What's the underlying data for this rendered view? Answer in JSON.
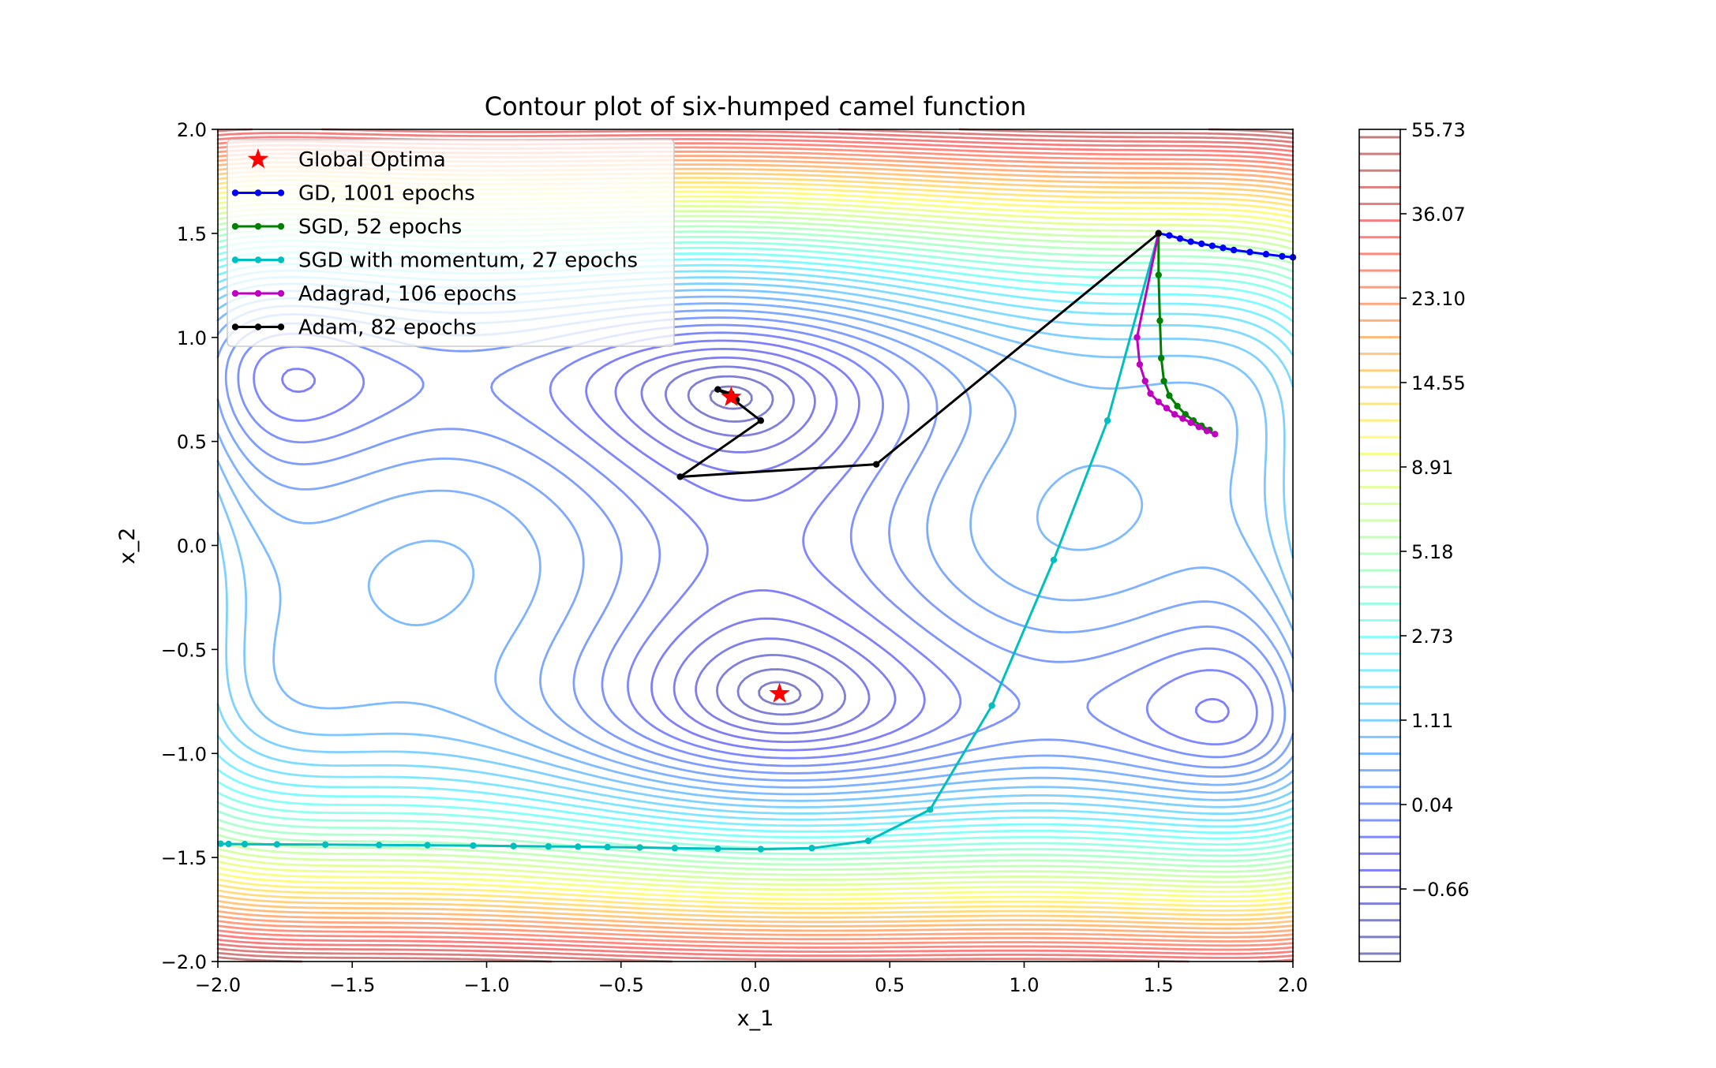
{
  "chart_data": {
    "type": "contour",
    "title": "Contour plot of six-humped camel function",
    "xlabel": "x_1",
    "ylabel": "x_2",
    "xlim": [
      -2.0,
      2.0
    ],
    "ylim": [
      -2.0,
      2.0
    ],
    "xticks": [
      -2.0,
      -1.5,
      -1.0,
      -0.5,
      0.0,
      0.5,
      1.0,
      1.5,
      2.0
    ],
    "yticks": [
      -2.0,
      -1.5,
      -1.0,
      -0.5,
      0.0,
      0.5,
      1.0,
      1.5,
      2.0
    ],
    "xtick_labels": [
      "−2.0",
      "−1.5",
      "−1.0",
      "−0.5",
      "0.0",
      "0.5",
      "1.0",
      "1.5",
      "2.0"
    ],
    "ytick_labels": [
      "−2.0",
      "−1.5",
      "−1.0",
      "−0.5",
      "0.0",
      "0.5",
      "1.0",
      "1.5",
      "2.0"
    ],
    "colormap": "jet",
    "contour_alpha": 0.5,
    "colorbar": {
      "tick_values": [
        55.73,
        36.07,
        23.1,
        14.55,
        8.91,
        5.18,
        2.73,
        1.11,
        0.04,
        -0.66
      ],
      "tick_labels": [
        "55.73",
        "36.07",
        "23.10",
        "14.55",
        "8.91",
        "5.18",
        "2.73",
        "1.11",
        "0.04",
        "−0.66"
      ],
      "min": -1.0316,
      "max": 55.73
    },
    "global_optima": [
      [
        0.0898,
        -0.7126
      ],
      [
        -0.0898,
        0.7126
      ]
    ],
    "legend": {
      "placement": "upper-left",
      "entries": [
        {
          "label": "Global Optima",
          "color": "#ff0000",
          "marker": "star"
        },
        {
          "label": "GD, 1001 epochs",
          "color": "#0000ff",
          "marker": "dot-line"
        },
        {
          "label": "SGD, 52 epochs",
          "color": "#008000",
          "marker": "dot-line"
        },
        {
          "label": "SGD with momentum, 27 epochs",
          "color": "#00bfbf",
          "marker": "dot-line"
        },
        {
          "label": "Adagrad, 106 epochs",
          "color": "#bf00bf",
          "marker": "dot-line"
        },
        {
          "label": "Adam, 82 epochs",
          "color": "#000000",
          "marker": "dot-line"
        }
      ]
    },
    "series": [
      {
        "name": "GD, 1001 epochs",
        "color": "#0000ff",
        "points": [
          [
            1.5,
            1.5
          ],
          [
            1.54,
            1.49
          ],
          [
            1.58,
            1.475
          ],
          [
            1.62,
            1.46
          ],
          [
            1.66,
            1.45
          ],
          [
            1.7,
            1.44
          ],
          [
            1.74,
            1.43
          ],
          [
            1.78,
            1.42
          ],
          [
            1.84,
            1.41
          ],
          [
            1.9,
            1.4
          ],
          [
            1.96,
            1.39
          ],
          [
            2.0,
            1.385
          ]
        ]
      },
      {
        "name": "SGD, 52 epochs",
        "color": "#008000",
        "points": [
          [
            1.5,
            1.5
          ],
          [
            1.5,
            1.3
          ],
          [
            1.505,
            1.08
          ],
          [
            1.51,
            0.9
          ],
          [
            1.52,
            0.79
          ],
          [
            1.54,
            0.72
          ],
          [
            1.57,
            0.67
          ],
          [
            1.6,
            0.63
          ],
          [
            1.63,
            0.6
          ],
          [
            1.66,
            0.575
          ],
          [
            1.69,
            0.555
          ]
        ]
      },
      {
        "name": "SGD with momentum, 27 epochs",
        "color": "#00bfbf",
        "points": [
          [
            1.5,
            1.5
          ],
          [
            1.31,
            0.6
          ],
          [
            1.11,
            -0.07
          ],
          [
            0.88,
            -0.77
          ],
          [
            0.65,
            -1.27
          ],
          [
            0.42,
            -1.42
          ],
          [
            0.21,
            -1.455
          ],
          [
            0.02,
            -1.46
          ],
          [
            -0.14,
            -1.458
          ],
          [
            -0.3,
            -1.455
          ],
          [
            -0.43,
            -1.452
          ],
          [
            -0.55,
            -1.45
          ],
          [
            -0.66,
            -1.448
          ],
          [
            -0.77,
            -1.447
          ],
          [
            -0.9,
            -1.445
          ],
          [
            -1.05,
            -1.443
          ],
          [
            -1.22,
            -1.441
          ],
          [
            -1.4,
            -1.44
          ],
          [
            -1.6,
            -1.438
          ],
          [
            -1.78,
            -1.437
          ],
          [
            -1.9,
            -1.436
          ],
          [
            -1.96,
            -1.435
          ],
          [
            -1.99,
            -1.434
          ]
        ]
      },
      {
        "name": "Adagrad, 106 epochs",
        "color": "#bf00bf",
        "points": [
          [
            1.5,
            1.5
          ],
          [
            1.42,
            1.0
          ],
          [
            1.43,
            0.87
          ],
          [
            1.45,
            0.79
          ],
          [
            1.47,
            0.73
          ],
          [
            1.5,
            0.69
          ],
          [
            1.53,
            0.66
          ],
          [
            1.56,
            0.63
          ],
          [
            1.59,
            0.61
          ],
          [
            1.62,
            0.59
          ],
          [
            1.65,
            0.57
          ],
          [
            1.68,
            0.55
          ],
          [
            1.71,
            0.535
          ]
        ]
      },
      {
        "name": "Adam, 82 epochs",
        "color": "#000000",
        "points": [
          [
            1.5,
            1.5
          ],
          [
            0.45,
            0.39
          ],
          [
            -0.28,
            0.33
          ],
          [
            0.02,
            0.6
          ],
          [
            -0.08,
            0.7
          ],
          [
            -0.1,
            0.72
          ],
          [
            -0.14,
            0.75
          ],
          [
            -0.09,
            0.73
          ],
          [
            -0.07,
            0.7
          ],
          [
            -0.09,
            0.71
          ]
        ]
      }
    ]
  }
}
